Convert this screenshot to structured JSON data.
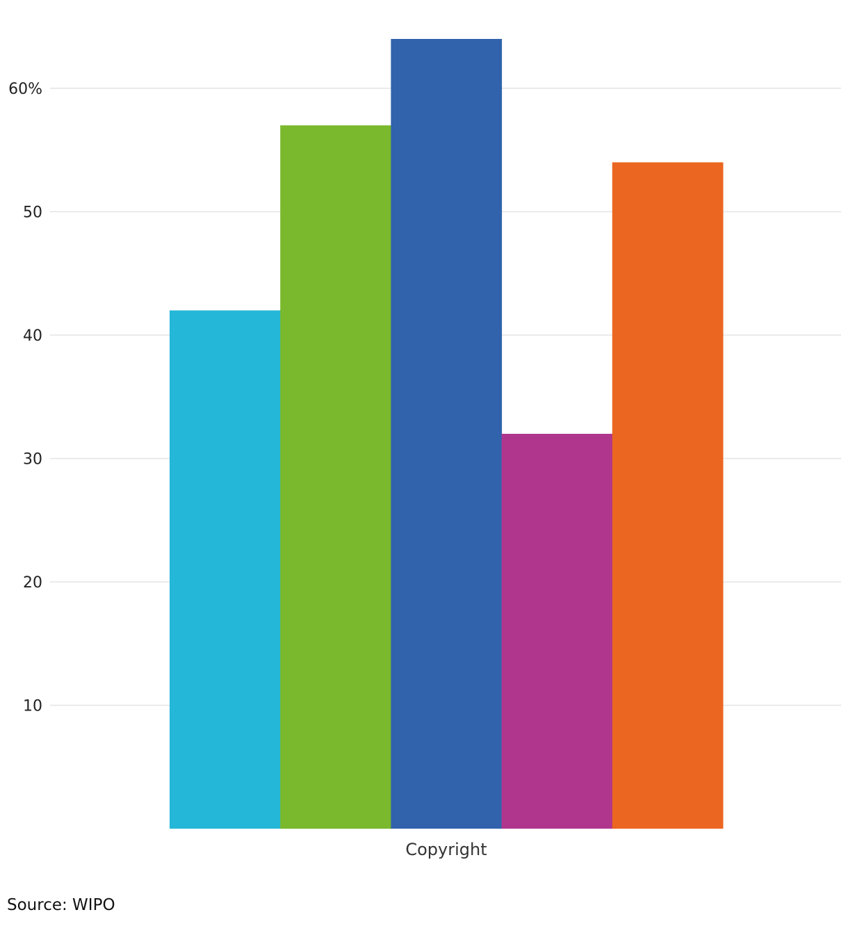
{
  "chart_data": {
    "type": "bar",
    "categories": [
      "Copyright"
    ],
    "series": [
      {
        "values": [
          42
        ],
        "color": "#24b7d7"
      },
      {
        "values": [
          57
        ],
        "color": "#7ab82d"
      },
      {
        "values": [
          64
        ],
        "color": "#3162ac"
      },
      {
        "values": [
          32
        ],
        "color": "#b0368d"
      },
      {
        "values": [
          54
        ],
        "color": "#eb6620"
      }
    ],
    "y_ticks": [
      10,
      20,
      30,
      40,
      50,
      60
    ],
    "y_tick_labels": [
      "10",
      "20",
      "30",
      "40",
      "50",
      "60%"
    ],
    "ylim": [
      0,
      64
    ],
    "grid": true,
    "legend": "none"
  },
  "source": "Source: WIPO"
}
